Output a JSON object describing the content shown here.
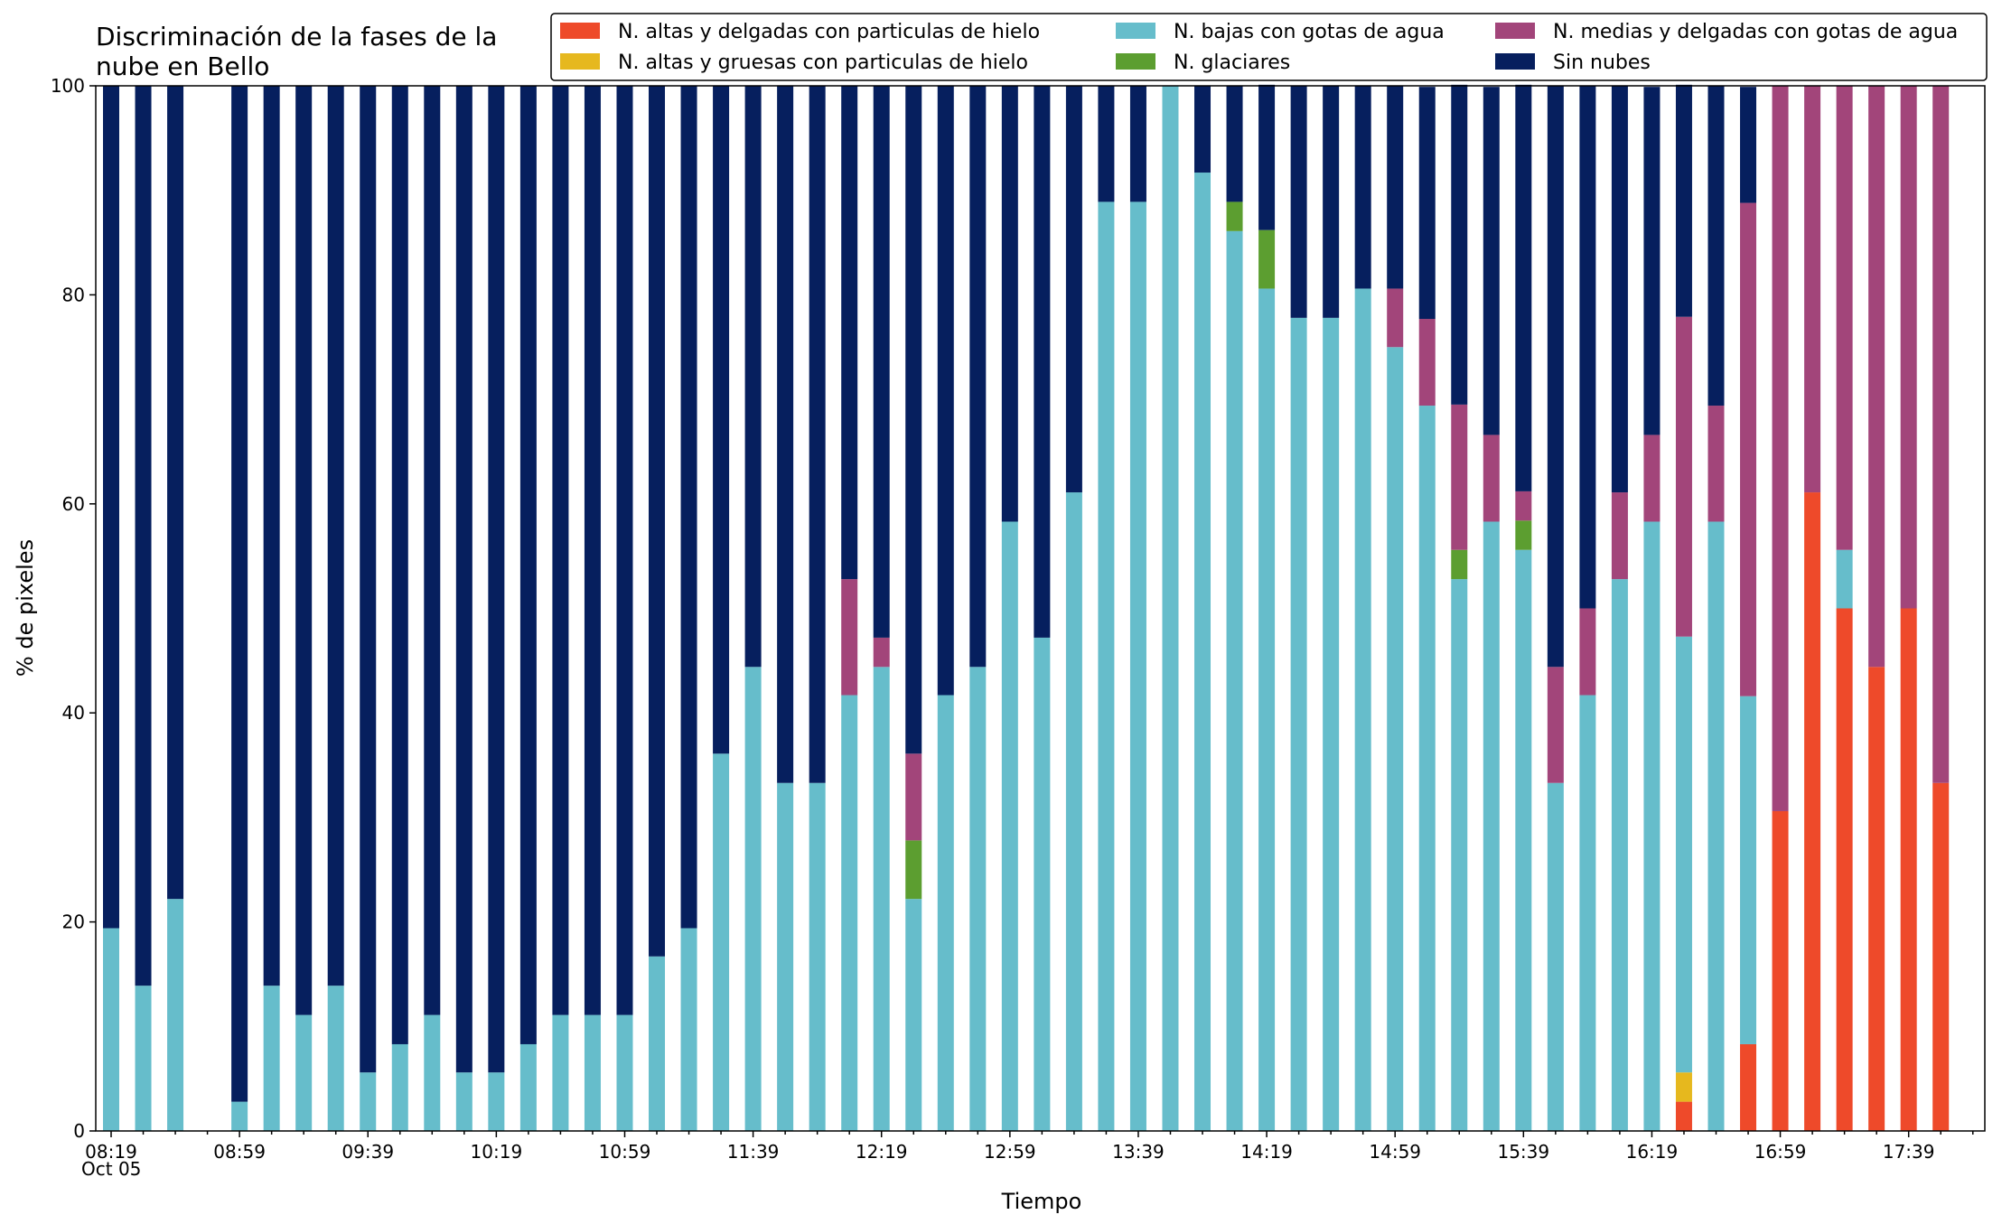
{
  "chart_data": {
    "type": "bar",
    "stacked": true,
    "title": "Discriminación de la fases de la nube en Bello",
    "title_lines": [
      "Discriminación de la fases de la",
      "nube en Bello"
    ],
    "xlabel": "Tiempo",
    "ylabel": "% de pixeles",
    "ylim": [
      0,
      100
    ],
    "yticks": [
      0,
      20,
      40,
      60,
      80,
      100
    ],
    "x_tick_labels": [
      "08:19",
      "08:59",
      "09:39",
      "10:19",
      "10:59",
      "11:39",
      "12:19",
      "12:59",
      "13:39",
      "14:19",
      "14:59",
      "15:39",
      "16:19",
      "16:59",
      "17:39"
    ],
    "x_date_label": "Oct 05",
    "legend_position": "top-right",
    "legend_entries": [
      "N. altas y delgadas con particulas de hielo",
      "N. altas y gruesas con particulas de hielo",
      "N. bajas con gotas de agua",
      "N. glaciares",
      "N. medias y delgadas con gotas de agua",
      "Sin nubes"
    ],
    "grid": false,
    "categories": [
      "08:19",
      "08:29",
      "08:39",
      "08:49",
      "08:59",
      "09:09",
      "09:19",
      "09:29",
      "09:39",
      "09:49",
      "09:59",
      "10:09",
      "10:19",
      "10:29",
      "10:39",
      "10:49",
      "10:59",
      "11:09",
      "11:19",
      "11:29",
      "11:39",
      "11:49",
      "11:59",
      "12:09",
      "12:19",
      "12:29",
      "12:39",
      "12:49",
      "12:59",
      "13:09",
      "13:19",
      "13:29",
      "13:39",
      "13:49",
      "13:59",
      "14:09",
      "14:19",
      "14:29",
      "14:39",
      "14:49",
      "14:59",
      "15:09",
      "15:19",
      "15:29",
      "15:39",
      "15:49",
      "15:59",
      "16:09",
      "16:19",
      "16:29",
      "16:39",
      "16:49",
      "16:59",
      "17:09",
      "17:19",
      "17:29",
      "17:39",
      "17:49"
    ],
    "series": [
      {
        "name": "N. altas y delgadas con particulas de hielo",
        "color": "#ee4a2a",
        "values": [
          0,
          0,
          0,
          null,
          0,
          0,
          0,
          0,
          0,
          0,
          0,
          0,
          0,
          0,
          0,
          0,
          0,
          0,
          0,
          0,
          0,
          0,
          0,
          0,
          0,
          0,
          0,
          0,
          0,
          0,
          0,
          0,
          0,
          0,
          0,
          0,
          0,
          0,
          0,
          0,
          0,
          0,
          0,
          0,
          0,
          0,
          0,
          0,
          0,
          2.8,
          0,
          8.3,
          30.6,
          61.1,
          50,
          44.4,
          50,
          33.3
        ]
      },
      {
        "name": "N. altas y gruesas con particulas de hielo",
        "color": "#e6b81e",
        "values": [
          0,
          0,
          0,
          null,
          0,
          0,
          0,
          0,
          0,
          0,
          0,
          0,
          0,
          0,
          0,
          0,
          0,
          0,
          0,
          0,
          0,
          0,
          0,
          0,
          0,
          0,
          0,
          0,
          0,
          0,
          0,
          0,
          0,
          0,
          0,
          0,
          0,
          0,
          0,
          0,
          0,
          0,
          0,
          0,
          0,
          0,
          0,
          0,
          0,
          2.8,
          0,
          0,
          0,
          0,
          0,
          0,
          0,
          0
        ]
      },
      {
        "name": "N. bajas con gotas de agua",
        "color": "#66bdcb",
        "values": [
          19.4,
          13.9,
          22.2,
          null,
          2.8,
          13.9,
          11.1,
          13.9,
          5.6,
          8.3,
          11.1,
          5.6,
          5.6,
          8.3,
          11.1,
          11.1,
          11.1,
          16.7,
          19.4,
          36.1,
          44.4,
          33.3,
          33.3,
          41.7,
          44.4,
          22.2,
          41.7,
          44.4,
          58.3,
          47.2,
          61.1,
          88.9,
          88.9,
          100,
          91.7,
          86.1,
          80.6,
          77.8,
          77.8,
          80.6,
          75,
          69.4,
          52.8,
          58.3,
          55.6,
          33.3,
          41.7,
          52.8,
          58.3,
          41.7,
          58.3,
          33.3,
          0,
          0,
          5.6,
          0,
          0,
          0
        ]
      },
      {
        "name": "N. glaciares",
        "color": "#5c9e30",
        "values": [
          0,
          0,
          0,
          null,
          0,
          0,
          0,
          0,
          0,
          0,
          0,
          0,
          0,
          0,
          0,
          0,
          0,
          0,
          0,
          0,
          0,
          0,
          0,
          0,
          0,
          5.6,
          0,
          0,
          0,
          0,
          0,
          0,
          0,
          0,
          0,
          2.8,
          5.6,
          0,
          0,
          0,
          0,
          0,
          2.8,
          0,
          2.8,
          0,
          0,
          0,
          0,
          0,
          0,
          0,
          0,
          0,
          0,
          0,
          0,
          0
        ]
      },
      {
        "name": "N. medias y delgadas con gotas de agua",
        "color": "#a2457a",
        "values": [
          0,
          0,
          0,
          null,
          0,
          0,
          0,
          0,
          0,
          0,
          0,
          0,
          0,
          0,
          0,
          0,
          0,
          0,
          0,
          0,
          0,
          0,
          0,
          11.1,
          2.8,
          8.3,
          0,
          0,
          0,
          0,
          0,
          0,
          0,
          0,
          0,
          0,
          0,
          0,
          0,
          0,
          5.6,
          8.3,
          13.9,
          8.3,
          2.8,
          11.1,
          8.3,
          8.3,
          8.3,
          30.6,
          11.1,
          47.2,
          69.4,
          38.9,
          44.4,
          55.6,
          50,
          66.7
        ]
      },
      {
        "name": "Sin nubes",
        "color": "#061f5e",
        "values": [
          80.6,
          86.1,
          77.8,
          null,
          97.2,
          86.1,
          88.9,
          86.1,
          94.4,
          91.7,
          88.9,
          94.4,
          94.4,
          91.7,
          88.9,
          88.9,
          88.9,
          83.3,
          80.6,
          63.9,
          55.6,
          66.7,
          66.7,
          47.2,
          52.8,
          63.9,
          58.3,
          55.6,
          41.7,
          52.8,
          38.9,
          11.1,
          11.1,
          0,
          8.3,
          11.1,
          13.9,
          22.2,
          22.2,
          19.4,
          19.4,
          22.2,
          30.6,
          33.3,
          38.9,
          55.6,
          50,
          38.9,
          33.3,
          22.2,
          30.6,
          11.1,
          0,
          0,
          0,
          0,
          0,
          0
        ]
      }
    ]
  }
}
